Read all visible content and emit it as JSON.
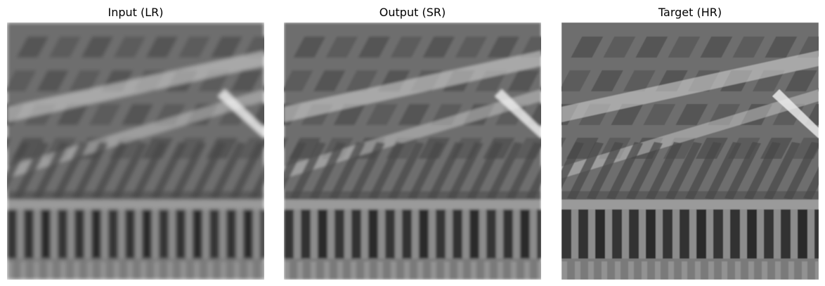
{
  "panels": [
    {
      "title": "Input (LR)",
      "blur": 2.6
    },
    {
      "title": "Output (SR)",
      "blur": 1.9
    },
    {
      "title": "Target (HR)",
      "blur": 0.45
    }
  ],
  "colors": {
    "background": "#ffffff",
    "image_base": "#6e6e6e",
    "grid_light": "#d8d8d8",
    "shadow": "#1a1a1a"
  }
}
